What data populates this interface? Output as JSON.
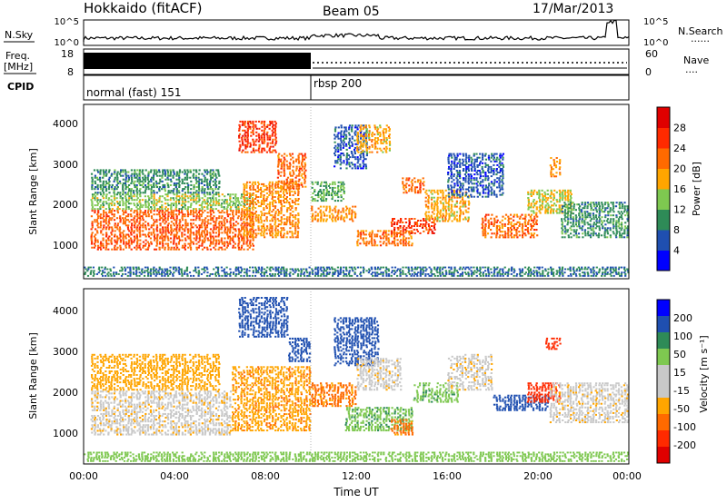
{
  "header": {
    "station": "Hokkaido (fitACF)",
    "beam": "Beam 05",
    "date": "17/Mar/2013"
  },
  "nsky_panel": {
    "left_label": "N.Sky",
    "right_label": "N.Search",
    "right_legend": "......",
    "ticks_left": [
      "10^5",
      "10^0"
    ],
    "ticks_right": [
      "10^5",
      "10^0"
    ]
  },
  "freq_panel": {
    "left_label_1": "Freq.",
    "left_label_2": "[MHz]",
    "right_label": "Nave",
    "right_legend": "....",
    "ticks_left": [
      "18",
      "8"
    ],
    "ticks_right": [
      "60",
      "0"
    ]
  },
  "cpid_panel": {
    "left_label": "CPID",
    "segments": [
      {
        "label": "normal (fast) 151",
        "start_hour": 0,
        "end_hour": 10
      },
      {
        "label": "rbsp 200",
        "start_hour": 10,
        "end_hour": 24
      }
    ]
  },
  "colors": {
    "power_scale": [
      "#0000ff",
      "#1f4fb0",
      "#2e8b57",
      "#7ec850",
      "#ffa500",
      "#ff6a00",
      "#ff2a00",
      "#e00000"
    ],
    "velocity_scale": [
      "#0000ff",
      "#1f4fb0",
      "#2e8b57",
      "#7ec850",
      "#c8c8c8",
      "#c8c8c8",
      "#ffa500",
      "#ff6a00",
      "#ff2a00",
      "#e00000"
    ]
  },
  "chart_data": [
    {
      "type": "heatmap",
      "name": "power",
      "ylabel": "Slant Range [km]",
      "ylim": [
        200,
        4500
      ],
      "yticks": [
        1000,
        2000,
        3000,
        4000
      ],
      "xlim": [
        0,
        24
      ],
      "colorbar": {
        "title": "Power [dB]",
        "ticks": [
          "4",
          "8",
          "12",
          "16",
          "20",
          "24",
          "28"
        ],
        "range": [
          0,
          32
        ]
      },
      "bands": [
        {
          "x0": 0.3,
          "x1": 7.5,
          "r0": 900,
          "r1": 1900,
          "v": 23
        },
        {
          "x0": 0.3,
          "x1": 7.5,
          "r0": 1900,
          "r1": 2300,
          "v": 14
        },
        {
          "x0": 0.3,
          "x1": 6.0,
          "r0": 2300,
          "r1": 2900,
          "v": 10
        },
        {
          "x0": 7.0,
          "x1": 9.5,
          "r0": 1200,
          "r1": 2600,
          "v": 20
        },
        {
          "x0": 6.8,
          "x1": 8.5,
          "r0": 3300,
          "r1": 4100,
          "v": 26
        },
        {
          "x0": 8.5,
          "x1": 9.8,
          "r0": 2400,
          "r1": 3300,
          "v": 22
        },
        {
          "x0": 10.0,
          "x1": 12.0,
          "r0": 1600,
          "r1": 2000,
          "v": 20
        },
        {
          "x0": 10.0,
          "x1": 11.5,
          "r0": 2100,
          "r1": 2600,
          "v": 12
        },
        {
          "x0": 11.0,
          "x1": 12.5,
          "r0": 2900,
          "r1": 4000,
          "v": 6
        },
        {
          "x0": 12.0,
          "x1": 13.5,
          "r0": 3300,
          "r1": 4000,
          "v": 18
        },
        {
          "x0": 12.0,
          "x1": 14.5,
          "r0": 1000,
          "r1": 1400,
          "v": 22
        },
        {
          "x0": 13.5,
          "x1": 15.5,
          "r0": 1300,
          "r1": 1700,
          "v": 26
        },
        {
          "x0": 14.0,
          "x1": 15.0,
          "r0": 2300,
          "r1": 2700,
          "v": 22
        },
        {
          "x0": 15.0,
          "x1": 17.0,
          "r0": 1600,
          "r1": 2400,
          "v": 18
        },
        {
          "x0": 16.0,
          "x1": 18.5,
          "r0": 2200,
          "r1": 3300,
          "v": 6
        },
        {
          "x0": 17.5,
          "x1": 20.0,
          "r0": 1200,
          "r1": 1800,
          "v": 22
        },
        {
          "x0": 19.5,
          "x1": 21.5,
          "r0": 1800,
          "r1": 2400,
          "v": 16
        },
        {
          "x0": 20.5,
          "x1": 21.0,
          "r0": 2700,
          "r1": 3200,
          "v": 20
        },
        {
          "x0": 21.0,
          "x1": 24.0,
          "r0": 1200,
          "r1": 2100,
          "v": 10
        },
        {
          "x0": 0.0,
          "x1": 24.0,
          "r0": 250,
          "r1": 500,
          "v": 8
        }
      ]
    },
    {
      "type": "heatmap",
      "name": "velocity",
      "ylabel": "Slant Range [km]",
      "ylim": [
        200,
        4500
      ],
      "yticks": [
        1000,
        2000,
        3000,
        4000
      ],
      "xlim": [
        0,
        24
      ],
      "xticks": [
        "00:00",
        "04:00",
        "08:00",
        "12:00",
        "16:00",
        "20:00",
        "00:00"
      ],
      "xlabel": "Time UT",
      "colorbar": {
        "title": "Velocity [m s⁻¹]",
        "ticks": [
          "200",
          "100",
          "50",
          "15",
          "-15",
          "-50",
          "-100",
          "-200"
        ]
      },
      "bands": [
        {
          "x0": 0.3,
          "x1": 6.5,
          "r0": 900,
          "r1": 2000,
          "v": -5
        },
        {
          "x0": 0.3,
          "x1": 6.0,
          "r0": 2000,
          "r1": 2900,
          "v": -30
        },
        {
          "x0": 6.5,
          "x1": 10.0,
          "r0": 1000,
          "r1": 2600,
          "v": -40
        },
        {
          "x0": 6.8,
          "x1": 9.0,
          "r0": 3300,
          "r1": 4300,
          "v": 180
        },
        {
          "x0": 9.0,
          "x1": 10.0,
          "r0": 2700,
          "r1": 3300,
          "v": 150
        },
        {
          "x0": 10.0,
          "x1": 12.0,
          "r0": 1600,
          "r1": 2200,
          "v": -60
        },
        {
          "x0": 11.0,
          "x1": 13.0,
          "r0": 2600,
          "r1": 3800,
          "v": 160
        },
        {
          "x0": 12.0,
          "x1": 14.0,
          "r0": 2000,
          "r1": 2800,
          "v": -5
        },
        {
          "x0": 11.5,
          "x1": 14.5,
          "r0": 1000,
          "r1": 1600,
          "v": 40
        },
        {
          "x0": 13.5,
          "x1": 14.5,
          "r0": 900,
          "r1": 1300,
          "v": -60
        },
        {
          "x0": 14.5,
          "x1": 16.5,
          "r0": 1700,
          "r1": 2200,
          "v": 40
        },
        {
          "x0": 16.0,
          "x1": 18.0,
          "r0": 2000,
          "r1": 2900,
          "v": -5
        },
        {
          "x0": 18.0,
          "x1": 20.5,
          "r0": 1500,
          "r1": 1900,
          "v": 180
        },
        {
          "x0": 19.5,
          "x1": 21.0,
          "r0": 1700,
          "r1": 2200,
          "v": -150
        },
        {
          "x0": 20.5,
          "x1": 24.0,
          "r0": 1200,
          "r1": 2200,
          "v": -5
        },
        {
          "x0": 20.3,
          "x1": 21.0,
          "r0": 3000,
          "r1": 3300,
          "v": -150
        },
        {
          "x0": 0.0,
          "x1": 24.0,
          "r0": 250,
          "r1": 500,
          "v": 30
        }
      ]
    }
  ]
}
